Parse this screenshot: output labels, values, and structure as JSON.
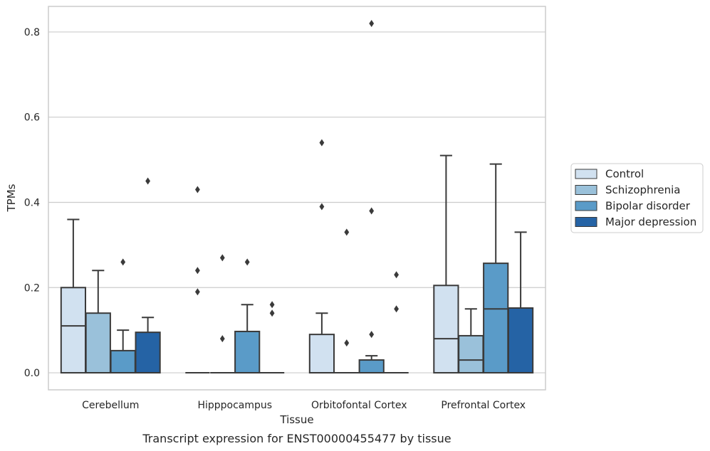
{
  "caption": "Transcript expression for ENST00000455477 by tissue",
  "chart_data": {
    "type": "box",
    "title": "",
    "xlabel": "Tissue",
    "ylabel": "TPMs",
    "ylim": [
      -0.04,
      0.86
    ],
    "yticks": [
      "0.0",
      "0.2",
      "0.4",
      "0.6",
      "0.8"
    ],
    "grid": "horizontal",
    "legend_position": "right",
    "categories": [
      "Cerebellum",
      "Hipppocampus",
      "Orbitofontal Cortex",
      "Prefrontal Cortex"
    ],
    "series": [
      {
        "name": "Control",
        "color": "#d1e1f0",
        "boxes": [
          {
            "q1": 0.0,
            "median": 0.11,
            "q3": 0.2,
            "whislo": 0.0,
            "whishi": 0.36,
            "fliers": []
          },
          {
            "q1": 0.0,
            "median": 0.0,
            "q3": 0.0,
            "whislo": 0.0,
            "whishi": 0.0,
            "fliers": [
              0.43,
              0.24,
              0.19
            ]
          },
          {
            "q1": 0.0,
            "median": 0.0,
            "q3": 0.09,
            "whislo": 0.0,
            "whishi": 0.14,
            "fliers": [
              0.54,
              0.39
            ]
          },
          {
            "q1": 0.0,
            "median": 0.08,
            "q3": 0.205,
            "whislo": 0.0,
            "whishi": 0.51,
            "fliers": []
          }
        ]
      },
      {
        "name": "Schizophrenia",
        "color": "#9ac1da",
        "boxes": [
          {
            "q1": 0.0,
            "median": 0.0,
            "q3": 0.14,
            "whislo": 0.0,
            "whishi": 0.24,
            "fliers": []
          },
          {
            "q1": 0.0,
            "median": 0.0,
            "q3": 0.0,
            "whislo": 0.0,
            "whishi": 0.0,
            "fliers": [
              0.27,
              0.08
            ]
          },
          {
            "q1": 0.0,
            "median": 0.0,
            "q3": 0.0,
            "whislo": 0.0,
            "whishi": 0.0,
            "fliers": [
              0.33,
              0.07
            ]
          },
          {
            "q1": 0.0,
            "median": 0.03,
            "q3": 0.087,
            "whislo": 0.0,
            "whishi": 0.15,
            "fliers": []
          }
        ]
      },
      {
        "name": "Bipolar disorder",
        "color": "#5a9bc8",
        "boxes": [
          {
            "q1": 0.0,
            "median": 0.0,
            "q3": 0.052,
            "whislo": 0.0,
            "whishi": 0.1,
            "fliers": [
              0.26
            ]
          },
          {
            "q1": 0.0,
            "median": 0.0,
            "q3": 0.097,
            "whislo": 0.0,
            "whishi": 0.16,
            "fliers": [
              0.26
            ]
          },
          {
            "q1": 0.0,
            "median": 0.0,
            "q3": 0.03,
            "whislo": 0.0,
            "whishi": 0.04,
            "fliers": [
              0.82,
              0.38,
              0.09
            ]
          },
          {
            "q1": 0.0,
            "median": 0.15,
            "q3": 0.257,
            "whislo": 0.0,
            "whishi": 0.49,
            "fliers": []
          }
        ]
      },
      {
        "name": "Major depression",
        "color": "#2563a5",
        "boxes": [
          {
            "q1": 0.0,
            "median": 0.0,
            "q3": 0.095,
            "whislo": 0.0,
            "whishi": 0.13,
            "fliers": [
              0.45
            ]
          },
          {
            "q1": 0.0,
            "median": 0.0,
            "q3": 0.0,
            "whislo": 0.0,
            "whishi": 0.0,
            "fliers": [
              0.16,
              0.14
            ]
          },
          {
            "q1": 0.0,
            "median": 0.0,
            "q3": 0.0,
            "whislo": 0.0,
            "whishi": 0.0,
            "fliers": [
              0.23,
              0.15
            ]
          },
          {
            "q1": 0.0,
            "median": 0.0,
            "q3": 0.152,
            "whislo": 0.0,
            "whishi": 0.33,
            "fliers": []
          }
        ]
      }
    ]
  }
}
